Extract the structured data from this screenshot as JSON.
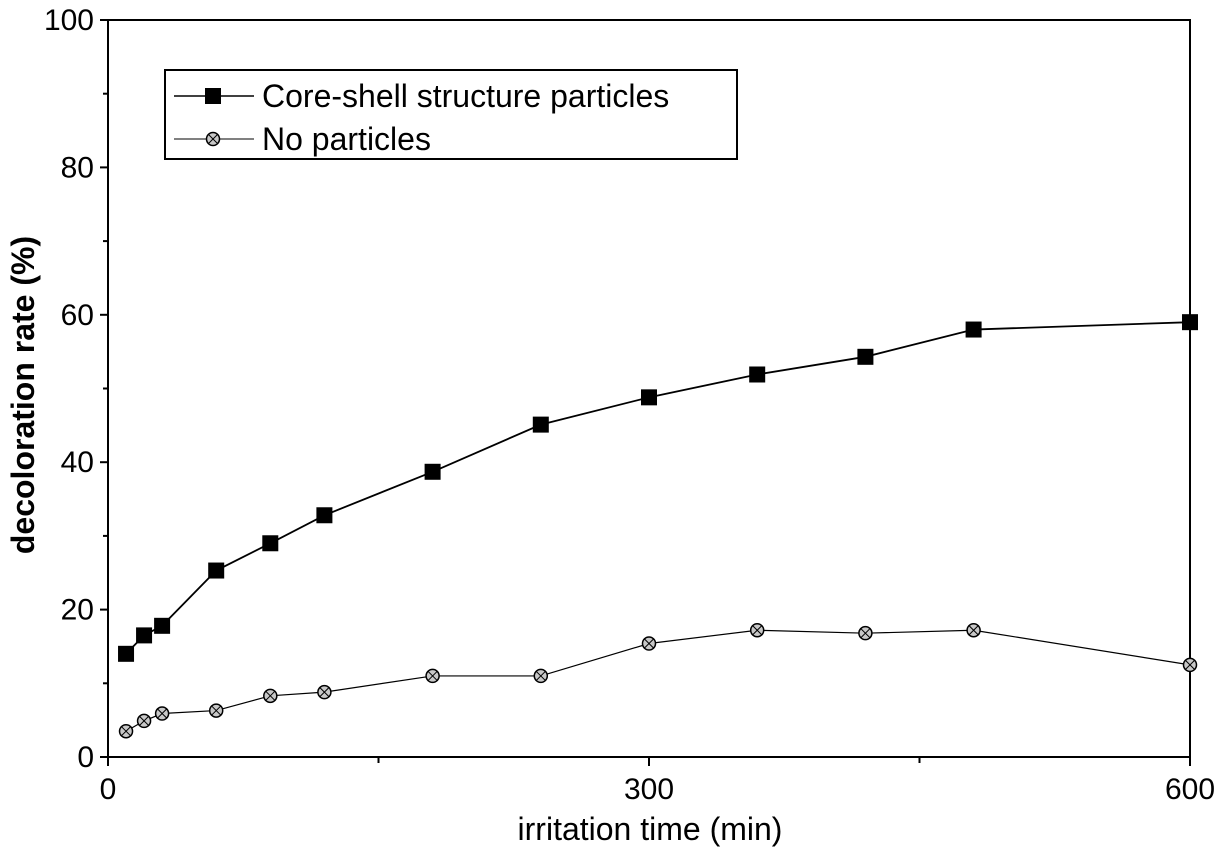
{
  "chart_data": {
    "type": "line",
    "xlabel": "irritation time (min)",
    "ylabel": "decoloration rate (%)",
    "xlim": [
      0,
      600
    ],
    "ylim": [
      0,
      100
    ],
    "xticks": [
      "0",
      "300",
      "600"
    ],
    "yticks": [
      "0",
      "20",
      "40",
      "60",
      "80",
      "100"
    ],
    "grid": false,
    "legend_position": "top-left",
    "series": [
      {
        "name": "Core-shell structure particles",
        "marker": "filled-square",
        "color": "#000000",
        "x": [
          10,
          20,
          30,
          60,
          90,
          120,
          180,
          240,
          300,
          360,
          420,
          480,
          600
        ],
        "y": [
          14,
          16.5,
          17.8,
          25.3,
          29,
          32.8,
          38.7,
          45.1,
          48.8,
          51.9,
          54.3,
          58,
          59
        ]
      },
      {
        "name": "No particles",
        "marker": "hatched-circle",
        "color": "#000000",
        "x": [
          10,
          20,
          30,
          60,
          90,
          120,
          180,
          240,
          300,
          360,
          420,
          480,
          600
        ],
        "y": [
          3.5,
          4.9,
          5.9,
          6.3,
          8.3,
          8.8,
          11.0,
          11.0,
          15.4,
          17.2,
          16.8,
          17.2,
          12.5
        ]
      }
    ]
  }
}
